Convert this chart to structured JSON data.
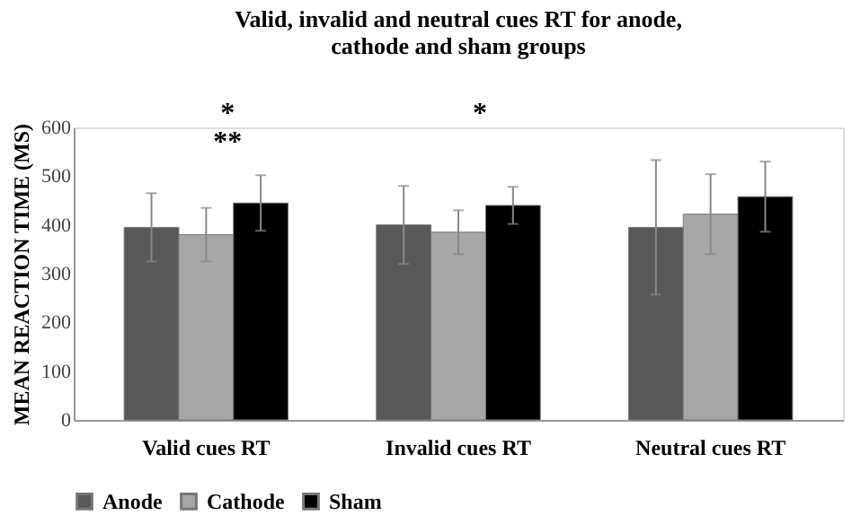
{
  "chart_data": {
    "type": "bar",
    "title": "Valid, invalid and neutral cues RT for anode, cathode and sham groups",
    "ylabel": "MEAN REACTION TIME (MS)",
    "categories": [
      "Valid cues RT",
      "Invalid cues RT",
      "Neutral cues RT"
    ],
    "series": [
      {
        "name": "Anode",
        "color": "#595959",
        "values": [
          395,
          400,
          395
        ],
        "errors": [
          70,
          80,
          138
        ]
      },
      {
        "name": "Cathode",
        "color": "#a6a6a6",
        "values": [
          380,
          385,
          422
        ],
        "errors": [
          55,
          45,
          82
        ]
      },
      {
        "name": "Sham",
        "color": "#000000",
        "values": [
          445,
          440,
          458
        ],
        "errors": [
          57,
          38,
          72
        ]
      }
    ],
    "ylim": [
      0,
      600
    ],
    "yticks": [
      0,
      100,
      200,
      300,
      400,
      500,
      600
    ],
    "grid": false,
    "legend": "bottom",
    "annotations": [
      "*",
      "**",
      "*"
    ]
  }
}
